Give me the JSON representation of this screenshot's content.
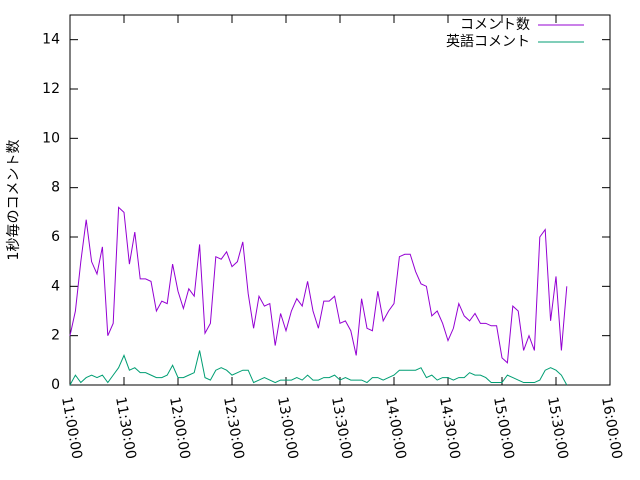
{
  "chart_data": {
    "type": "line",
    "ylabel": "1秒毎のコメント数",
    "x": [
      "11:00:00",
      "11:03:00",
      "11:06:00",
      "11:09:00",
      "11:12:00",
      "11:15:00",
      "11:18:00",
      "11:21:00",
      "11:24:00",
      "11:27:00",
      "11:30:00",
      "11:33:00",
      "11:36:00",
      "11:39:00",
      "11:42:00",
      "11:45:00",
      "11:48:00",
      "11:51:00",
      "11:54:00",
      "11:57:00",
      "12:00:00",
      "12:03:00",
      "12:06:00",
      "12:09:00",
      "12:12:00",
      "12:15:00",
      "12:18:00",
      "12:21:00",
      "12:24:00",
      "12:27:00",
      "12:30:00",
      "12:33:00",
      "12:36:00",
      "12:39:00",
      "12:42:00",
      "12:45:00",
      "12:48:00",
      "12:51:00",
      "12:54:00",
      "12:57:00",
      "13:00:00",
      "13:03:00",
      "13:06:00",
      "13:09:00",
      "13:12:00",
      "13:15:00",
      "13:18:00",
      "13:21:00",
      "13:24:00",
      "13:27:00",
      "13:30:00",
      "13:33:00",
      "13:36:00",
      "13:39:00",
      "13:42:00",
      "13:45:00",
      "13:48:00",
      "13:51:00",
      "13:54:00",
      "13:57:00",
      "14:00:00",
      "14:03:00",
      "14:06:00",
      "14:09:00",
      "14:12:00",
      "14:15:00",
      "14:18:00",
      "14:21:00",
      "14:24:00",
      "14:27:00",
      "14:30:00",
      "14:33:00",
      "14:36:00",
      "14:39:00",
      "14:42:00",
      "14:45:00",
      "14:48:00",
      "14:51:00",
      "14:54:00",
      "14:57:00",
      "15:00:00",
      "15:03:00",
      "15:06:00",
      "15:09:00",
      "15:12:00",
      "15:15:00",
      "15:18:00",
      "15:21:00",
      "15:24:00",
      "15:27:00",
      "15:30:00",
      "15:33:00",
      "15:36:00"
    ],
    "series": [
      {
        "name": "コメント数",
        "color": "#9400d3",
        "values": [
          2.0,
          3.0,
          5.0,
          6.7,
          5.0,
          4.5,
          5.6,
          2.0,
          2.5,
          7.2,
          7.0,
          4.9,
          6.2,
          4.3,
          4.3,
          4.2,
          3.0,
          3.4,
          3.3,
          4.9,
          3.8,
          3.1,
          3.9,
          3.6,
          5.7,
          2.1,
          2.5,
          5.2,
          5.1,
          5.4,
          4.8,
          5.0,
          5.8,
          3.7,
          2.3,
          3.6,
          3.2,
          3.3,
          1.6,
          2.9,
          2.2,
          3.0,
          3.5,
          3.2,
          4.2,
          3.0,
          2.3,
          3.4,
          3.4,
          3.6,
          2.5,
          2.6,
          2.2,
          1.2,
          3.5,
          2.3,
          2.2,
          3.8,
          2.6,
          3.0,
          3.3,
          5.2,
          5.3,
          5.3,
          4.6,
          4.1,
          4.0,
          2.8,
          3.0,
          2.5,
          1.8,
          2.3,
          3.3,
          2.8,
          2.6,
          2.9,
          2.5,
          2.5,
          2.4,
          2.4,
          1.1,
          0.9,
          3.2,
          3.0,
          1.4,
          2.0,
          1.4,
          6.0,
          6.3,
          2.6,
          4.4,
          1.4,
          4.0
        ]
      },
      {
        "name": "英語コメント",
        "color": "#009e73",
        "values": [
          0.0,
          0.4,
          0.1,
          0.3,
          0.4,
          0.3,
          0.4,
          0.1,
          0.4,
          0.7,
          1.2,
          0.6,
          0.7,
          0.5,
          0.5,
          0.4,
          0.3,
          0.3,
          0.4,
          0.8,
          0.3,
          0.3,
          0.4,
          0.5,
          1.4,
          0.3,
          0.2,
          0.6,
          0.7,
          0.6,
          0.4,
          0.5,
          0.6,
          0.6,
          0.1,
          0.2,
          0.3,
          0.2,
          0.1,
          0.2,
          0.2,
          0.2,
          0.3,
          0.2,
          0.4,
          0.2,
          0.2,
          0.3,
          0.3,
          0.4,
          0.2,
          0.3,
          0.2,
          0.2,
          0.2,
          0.1,
          0.3,
          0.3,
          0.2,
          0.3,
          0.4,
          0.6,
          0.6,
          0.6,
          0.6,
          0.7,
          0.3,
          0.4,
          0.2,
          0.3,
          0.3,
          0.2,
          0.3,
          0.3,
          0.5,
          0.4,
          0.4,
          0.3,
          0.1,
          0.1,
          0.1,
          0.4,
          0.3,
          0.2,
          0.1,
          0.1,
          0.1,
          0.2,
          0.6,
          0.7,
          0.6,
          0.4,
          0.0
        ]
      }
    ],
    "xlim": [
      "11:00:00",
      "16:00:00"
    ],
    "xticks": [
      "11:00:00",
      "11:30:00",
      "12:00:00",
      "12:30:00",
      "13:00:00",
      "13:30:00",
      "14:00:00",
      "14:30:00",
      "15:00:00",
      "15:30:00",
      "16:00:00"
    ],
    "ylim": [
      0,
      15
    ],
    "yticks": [
      0,
      2,
      4,
      6,
      8,
      10,
      12,
      14
    ],
    "legend": "top-right"
  }
}
